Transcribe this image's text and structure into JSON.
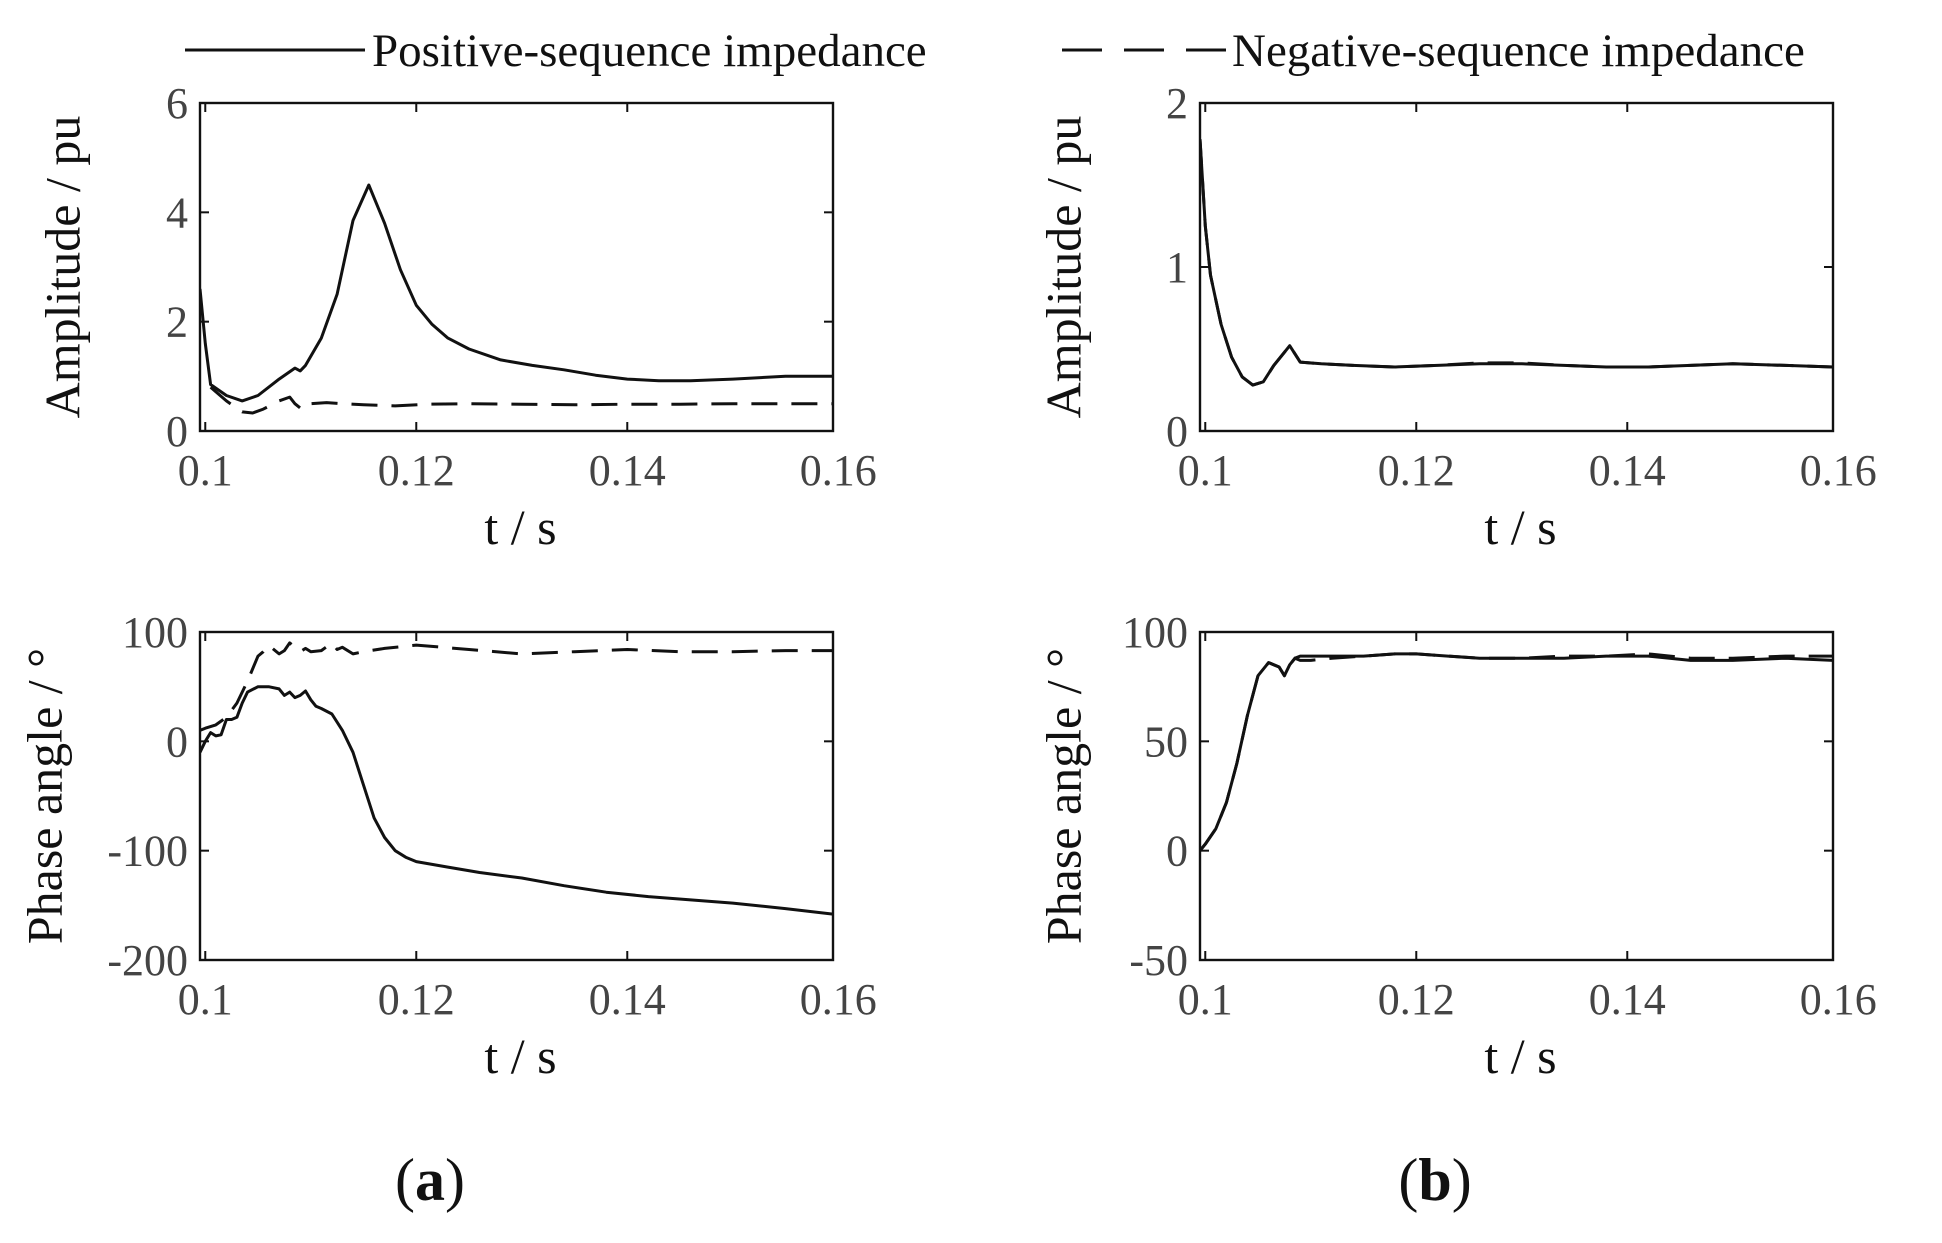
{
  "legend": {
    "positive_label": "Positive-sequence impedance",
    "negative_label": "Negative-sequence impedance"
  },
  "panel_labels": {
    "a": {
      "open": "(",
      "letter": "a",
      "close": ")"
    },
    "b": {
      "open": "(",
      "letter": "b",
      "close": ")"
    }
  },
  "chart_data": [
    {
      "id": "a-amplitude",
      "type": "line",
      "xlabel": "t / s",
      "ylabel": "Amplitude / pu",
      "xlim": [
        0.0995,
        0.1595
      ],
      "ylim": [
        0,
        6
      ],
      "xticks": [
        0.1,
        0.12,
        0.14,
        0.16
      ],
      "xtick_labels": [
        "0.1",
        "0.12",
        "0.14",
        "0.16"
      ],
      "yticks": [
        0,
        2,
        4,
        6
      ],
      "ytick_labels": [
        "0",
        "2",
        "4",
        "6"
      ],
      "series": [
        {
          "name": "Positive-sequence impedance",
          "style": "solid",
          "x": [
            0.0995,
            0.1,
            0.1005,
            0.102,
            0.1035,
            0.105,
            0.107,
            0.1085,
            0.109,
            0.1095,
            0.111,
            0.1125,
            0.114,
            0.1155,
            0.117,
            0.1185,
            0.12,
            0.1215,
            0.123,
            0.125,
            0.128,
            0.131,
            0.134,
            0.137,
            0.14,
            0.143,
            0.146,
            0.15,
            0.155,
            0.1595
          ],
          "y": [
            2.6,
            1.6,
            0.85,
            0.65,
            0.55,
            0.65,
            0.95,
            1.15,
            1.1,
            1.2,
            1.7,
            2.5,
            3.85,
            4.5,
            3.8,
            2.95,
            2.3,
            1.95,
            1.7,
            1.5,
            1.3,
            1.2,
            1.12,
            1.02,
            0.95,
            0.92,
            0.92,
            0.95,
            1.0,
            1.0
          ]
        },
        {
          "name": "Negative-sequence impedance",
          "style": "dashed",
          "x": [
            0.1005,
            0.102,
            0.1035,
            0.1045,
            0.1055,
            0.107,
            0.108,
            0.1085,
            0.109,
            0.1095,
            0.11,
            0.1115,
            0.113,
            0.115,
            0.118,
            0.121,
            0.125,
            0.13,
            0.135,
            0.14,
            0.145,
            0.15,
            0.155,
            0.1595
          ],
          "y": [
            0.8,
            0.55,
            0.35,
            0.33,
            0.4,
            0.55,
            0.62,
            0.5,
            0.42,
            0.52,
            0.5,
            0.52,
            0.5,
            0.48,
            0.46,
            0.49,
            0.5,
            0.49,
            0.48,
            0.49,
            0.49,
            0.5,
            0.5,
            0.5
          ]
        }
      ]
    },
    {
      "id": "b-amplitude",
      "type": "line",
      "xlabel": "t / s",
      "ylabel": "Amplitude / pu",
      "xlim": [
        0.0995,
        0.1595
      ],
      "ylim": [
        0,
        2
      ],
      "xticks": [
        0.1,
        0.12,
        0.14,
        0.16
      ],
      "xtick_labels": [
        "0.1",
        "0.12",
        "0.14",
        "0.16"
      ],
      "yticks": [
        0,
        1,
        2
      ],
      "ytick_labels": [
        "0",
        "1",
        "2"
      ],
      "series": [
        {
          "name": "Positive-sequence impedance",
          "style": "solid",
          "x": [
            0.0995,
            0.1,
            0.1005,
            0.1015,
            0.1025,
            0.1035,
            0.1045,
            0.1055,
            0.1065,
            0.1075,
            0.108,
            0.1085,
            0.109,
            0.111,
            0.114,
            0.118,
            0.122,
            0.126,
            0.13,
            0.134,
            0.138,
            0.142,
            0.146,
            0.15,
            0.155,
            0.1595
          ],
          "y": [
            1.78,
            1.25,
            0.95,
            0.65,
            0.45,
            0.33,
            0.28,
            0.3,
            0.4,
            0.48,
            0.52,
            0.47,
            0.42,
            0.41,
            0.4,
            0.39,
            0.4,
            0.41,
            0.41,
            0.4,
            0.39,
            0.39,
            0.4,
            0.41,
            0.4,
            0.39
          ]
        },
        {
          "name": "Negative-sequence impedance",
          "style": "dashed",
          "x": [
            0.0995,
            0.1,
            0.1005,
            0.1015,
            0.1025,
            0.1035,
            0.1045,
            0.1055,
            0.1065,
            0.1075,
            0.108,
            0.1085,
            0.109,
            0.111,
            0.114,
            0.118,
            0.122,
            0.126,
            0.13,
            0.134,
            0.138,
            0.142,
            0.146,
            0.15,
            0.155,
            0.1595
          ],
          "y": [
            1.78,
            1.25,
            0.95,
            0.65,
            0.45,
            0.33,
            0.28,
            0.3,
            0.4,
            0.48,
            0.52,
            0.47,
            0.42,
            0.41,
            0.4,
            0.39,
            0.4,
            0.415,
            0.415,
            0.4,
            0.39,
            0.39,
            0.4,
            0.41,
            0.4,
            0.39
          ]
        }
      ]
    },
    {
      "id": "a-phase",
      "type": "line",
      "xlabel": "t / s",
      "ylabel": "Phase angle / °",
      "xlim": [
        0.0995,
        0.1595
      ],
      "ylim": [
        -200,
        100
      ],
      "xticks": [
        0.1,
        0.12,
        0.14,
        0.16
      ],
      "xtick_labels": [
        "0.1",
        "0.12",
        "0.14",
        "0.16"
      ],
      "yticks": [
        -200,
        -100,
        0,
        100
      ],
      "ytick_labels": [
        "-200",
        "-100",
        "0",
        "100"
      ],
      "series": [
        {
          "name": "Positive-sequence impedance",
          "style": "solid",
          "x": [
            0.0995,
            0.1,
            0.1005,
            0.101,
            0.1015,
            0.102,
            0.1025,
            0.103,
            0.1035,
            0.104,
            0.105,
            0.106,
            0.107,
            0.1075,
            0.108,
            0.1085,
            0.109,
            0.1095,
            0.11,
            0.1105,
            0.111,
            0.112,
            0.113,
            0.114,
            0.115,
            0.116,
            0.117,
            0.118,
            0.119,
            0.12,
            0.123,
            0.126,
            0.13,
            0.134,
            0.138,
            0.142,
            0.146,
            0.15,
            0.155,
            0.1595
          ],
          "y": [
            -10,
            0,
            8,
            5,
            6,
            20,
            20,
            22,
            35,
            45,
            50,
            50,
            48,
            42,
            45,
            40,
            42,
            46,
            38,
            32,
            30,
            25,
            10,
            -10,
            -40,
            -70,
            -88,
            -100,
            -106,
            -110,
            -115,
            -120,
            -125,
            -132,
            -138,
            -142,
            -145,
            -148,
            -153,
            -158
          ]
        },
        {
          "name": "Negative-sequence impedance",
          "style": "dashed",
          "x": [
            0.0995,
            0.1,
            0.101,
            0.102,
            0.103,
            0.104,
            0.105,
            0.1055,
            0.106,
            0.1065,
            0.107,
            0.1075,
            0.108,
            0.1085,
            0.109,
            0.1095,
            0.11,
            0.111,
            0.112,
            0.1125,
            0.113,
            0.114,
            0.115,
            0.117,
            0.12,
            0.125,
            0.13,
            0.135,
            0.14,
            0.145,
            0.15,
            0.155,
            0.1595
          ],
          "y": [
            10,
            12,
            15,
            22,
            35,
            55,
            78,
            82,
            88,
            84,
            80,
            83,
            90,
            86,
            82,
            85,
            82,
            83,
            90,
            84,
            86,
            80,
            82,
            85,
            88,
            84,
            80,
            82,
            84,
            82,
            82,
            83,
            83
          ]
        }
      ]
    },
    {
      "id": "b-phase",
      "type": "line",
      "xlabel": "t / s",
      "ylabel": "Phase angle / °",
      "xlim": [
        0.0995,
        0.1595
      ],
      "ylim": [
        -50,
        100
      ],
      "xticks": [
        0.1,
        0.12,
        0.14,
        0.16
      ],
      "xtick_labels": [
        "0.1",
        "0.12",
        "0.14",
        "0.16"
      ],
      "yticks": [
        -50,
        0,
        50,
        100
      ],
      "ytick_labels": [
        "-50",
        "0",
        "50",
        "100"
      ],
      "series": [
        {
          "name": "Positive-sequence impedance",
          "style": "solid",
          "x": [
            0.0995,
            0.1,
            0.101,
            0.102,
            0.103,
            0.104,
            0.105,
            0.106,
            0.107,
            0.1075,
            0.108,
            0.1085,
            0.109,
            0.11,
            0.112,
            0.115,
            0.118,
            0.12,
            0.123,
            0.126,
            0.13,
            0.134,
            0.138,
            0.142,
            0.146,
            0.15,
            0.155,
            0.1595
          ],
          "y": [
            0,
            3,
            10,
            22,
            40,
            62,
            80,
            86,
            84,
            80,
            85,
            88,
            89,
            89,
            89,
            89,
            90,
            90,
            89,
            88,
            88,
            88,
            89,
            89,
            87,
            87,
            88,
            87
          ]
        },
        {
          "name": "Negative-sequence impedance",
          "style": "dashed",
          "x": [
            0.0995,
            0.1,
            0.101,
            0.102,
            0.103,
            0.104,
            0.105,
            0.106,
            0.107,
            0.1075,
            0.108,
            0.1085,
            0.109,
            0.11,
            0.112,
            0.115,
            0.118,
            0.12,
            0.123,
            0.126,
            0.13,
            0.134,
            0.138,
            0.142,
            0.146,
            0.15,
            0.155,
            0.1595
          ],
          "y": [
            0,
            3,
            10,
            22,
            40,
            62,
            80,
            86,
            84,
            80,
            85,
            88,
            87,
            87,
            88,
            89,
            90,
            90,
            89,
            88,
            88,
            89,
            89,
            90,
            88,
            88,
            89,
            89
          ]
        }
      ]
    }
  ]
}
